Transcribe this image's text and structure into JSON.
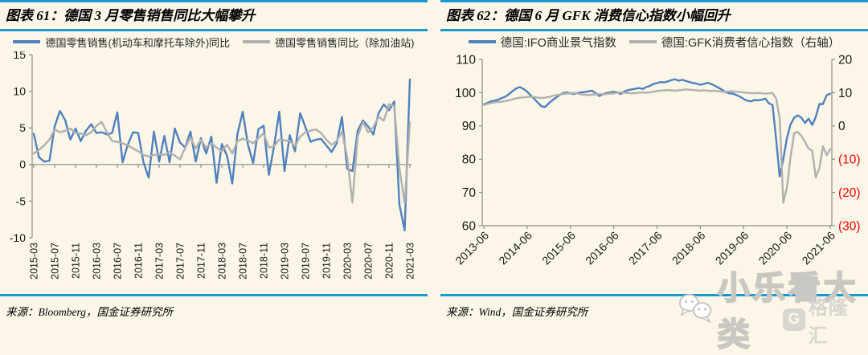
{
  "figures": [
    {
      "title": "图表 61：德国 3 月零售销售同比大幅攀升",
      "legend": [
        {
          "label": "德国零售销售(机动车和摩托车除外)同比",
          "color": "#4f81bd"
        },
        {
          "label": "德国零售销售同比（除加油站)",
          "color": "#b0b0b0"
        }
      ],
      "source": "来源：Bloomberg，国金证券研究所"
    },
    {
      "title": "图表 62：德国 6 月 GFK 消费信心指数小幅回升",
      "legend": [
        {
          "label": "德国:IFO商业景气指数",
          "color": "#4f81bd"
        },
        {
          "label": "德国:GFK消费者信心指数（右轴）",
          "color": "#b0b0b0"
        }
      ],
      "source": "来源：Wind，国金证券研究所"
    }
  ],
  "chart_data": [
    {
      "type": "line",
      "title": "图表 61：德国 3 月零售销售同比大幅攀升",
      "x_monthly_start": "2015-03",
      "x_tick_every": 4,
      "x_tick_labels": [
        "2015-03",
        "2015-07",
        "2015-11",
        "2016-03",
        "2016-07",
        "2016-11",
        "2017-03",
        "2017-07",
        "2017-11",
        "2018-03",
        "2018-07",
        "2018-11",
        "2019-03",
        "2019-07",
        "2019-11",
        "2020-03",
        "2020-07",
        "2020-11",
        "2021-03"
      ],
      "ylim": [
        -10,
        15
      ],
      "y_ticks": [
        15,
        10,
        5,
        0,
        -5,
        -10
      ],
      "x_axis_at": 0,
      "grid": false,
      "legend_position": "top",
      "series": [
        {
          "name": "德国零售销售(机动车和摩托车除外)同比",
          "axis": "left",
          "color": "#4f81bd",
          "values": [
            4.2,
            1.0,
            0.4,
            0.5,
            5.2,
            7.3,
            6.1,
            3.4,
            4.9,
            3.2,
            4.6,
            5.5,
            4.3,
            4.4,
            4.1,
            4.3,
            7.1,
            0.3,
            2.7,
            4.4,
            4.3,
            0.3,
            -1.8,
            4.5,
            0.4,
            3.9,
            0.3,
            4.9,
            3.0,
            2.3,
            4.5,
            0.4,
            3.6,
            1.5,
            3.8,
            -2.5,
            2.8,
            1.2,
            -2.6,
            4.2,
            7.2,
            2.7,
            0.2,
            4.8,
            5.3,
            -1.4,
            2.5,
            7.2,
            -0.9,
            4.0,
            1.8,
            7.0,
            5.1,
            3.1,
            3.4,
            3.5,
            2.6,
            1.7,
            2.9,
            6.5,
            -0.6,
            -0.9,
            4.6,
            6.0,
            5.2,
            4.1,
            7.0,
            8.2,
            7.4,
            8.6,
            -5.5,
            -9.0,
            11.6
          ]
        },
        {
          "name": "德国零售销售同比（除加油站)",
          "axis": "left",
          "color": "#b0b0b0",
          "values": [
            1.5,
            2.0,
            2.6,
            3.4,
            4.8,
            4.4,
            4.6,
            4.9,
            4.3,
            4.2,
            4.0,
            4.4,
            5.3,
            5.8,
            4.4,
            3.2,
            3.1,
            2.9,
            2.6,
            2.2,
            1.8,
            1.3,
            1.1,
            1.3,
            1.4,
            1.3,
            1.7,
            1.2,
            0.7,
            2.3,
            3.7,
            2.2,
            3.4,
            2.3,
            2.9,
            2.3,
            1.8,
            2.7,
            1.5,
            3.2,
            3.5,
            3.3,
            2.9,
            3.6,
            4.3,
            2.3,
            2.5,
            3.4,
            3.3,
            3.2,
            2.5,
            3.8,
            4.4,
            4.6,
            4.8,
            4.3,
            3.4,
            2.7,
            3.2,
            4.5,
            1.0,
            -5.2,
            3.8,
            5.8,
            4.4,
            5.1,
            6.5,
            6.0,
            8.2,
            8.0,
            -0.5,
            -5.3,
            5.8
          ]
        }
      ]
    },
    {
      "type": "line",
      "title": "图表 62：德国 6 月 GFK 消费信心指数小幅回升",
      "x_monthly_start": "2013-06",
      "x_tick_every": 12,
      "x_tick_labels": [
        "2013-06",
        "2014-06",
        "2015-06",
        "2016-06",
        "2017-06",
        "2018-06",
        "2019-06",
        "2020-06",
        "2021-06"
      ],
      "ylim_left": [
        60,
        110
      ],
      "y_ticks_left": [
        110,
        100,
        90,
        80,
        70,
        60
      ],
      "ylim_right": [
        -30,
        20
      ],
      "y_ticks_right": [
        [
          20,
          "20"
        ],
        [
          10,
          "10"
        ],
        [
          0,
          "0"
        ],
        [
          -10,
          "(10)"
        ],
        [
          -20,
          "(20)"
        ],
        [
          -30,
          "(30)"
        ]
      ],
      "x_axis_at": 60,
      "grid": false,
      "legend_position": "top",
      "negative_tick_color": "#ff0000",
      "series": [
        {
          "name": "德国:IFO商业景气指数",
          "axis": "left",
          "color": "#4f81bd",
          "values": [
            96.5,
            96.9,
            97.4,
            97.6,
            97.9,
            98.4,
            98.8,
            99.6,
            100.5,
            101.3,
            101.7,
            101.1,
            100.3,
            99.2,
            98.1,
            97.0,
            95.9,
            95.7,
            96.8,
            97.7,
            98.5,
            99.3,
            99.9,
            100.1,
            99.8,
            99.6,
            99.9,
            100.1,
            100.2,
            100.4,
            100.6,
            99.8,
            99.0,
            99.5,
            99.9,
            100.1,
            100.3,
            100.1,
            99.6,
            100.4,
            100.8,
            101.0,
            101.2,
            101.4,
            101.1,
            101.7,
            102.0,
            102.6,
            102.9,
            103.2,
            103.1,
            103.4,
            103.8,
            104.0,
            103.6,
            103.9,
            103.5,
            103.2,
            102.9,
            102.7,
            102.4,
            102.6,
            103.0,
            102.6,
            102.1,
            101.5,
            100.9,
            100.2,
            99.8,
            99.7,
            99.3,
            98.8,
            98.1,
            97.6,
            97.4,
            97.8,
            97.7,
            97.9,
            98.2,
            96.8,
            96.3,
            86.0,
            74.8,
            80.0,
            86.3,
            90.4,
            92.5,
            93.2,
            92.5,
            90.9,
            92.2,
            90.3,
            92.7,
            96.6,
            96.6,
            99.2,
            99.7
          ]
        },
        {
          "name": "德国:GFK消费者信心指数（右轴）",
          "axis": "right",
          "color": "#b0b0b0",
          "values": [
            6.3,
            6.6,
            6.9,
            7.1,
            7.2,
            7.3,
            7.5,
            7.7,
            8.0,
            8.3,
            8.5,
            8.6,
            8.7,
            8.8,
            8.7,
            8.5,
            8.4,
            8.5,
            8.7,
            9.0,
            9.2,
            9.4,
            9.6,
            9.7,
            9.8,
            9.9,
            9.7,
            9.5,
            9.4,
            9.3,
            9.4,
            9.5,
            9.6,
            9.5,
            9.6,
            9.7,
            9.8,
            10.0,
            10.1,
            10.0,
            9.9,
            9.8,
            9.9,
            10.0,
            10.1,
            10.0,
            10.1,
            10.3,
            10.5,
            10.6,
            10.7,
            10.8,
            10.7,
            10.6,
            10.7,
            10.8,
            11.0,
            10.9,
            10.8,
            10.7,
            10.6,
            10.7,
            10.6,
            10.5,
            10.6,
            10.4,
            10.3,
            10.2,
            10.4,
            10.4,
            10.3,
            10.2,
            10.1,
            10.0,
            9.9,
            9.8,
            9.9,
            9.8,
            9.7,
            9.8,
            9.9,
            8.3,
            2.3,
            -23.1,
            -18.6,
            -9.4,
            -2.2,
            -1.8,
            -3.0,
            -4.8,
            -6.8,
            -7.5,
            -15.5,
            -12.7,
            -6.1,
            -8.8,
            -7.0
          ]
        }
      ]
    }
  ],
  "watermark": {
    "text": "小乐看大类",
    "logo_g": "G",
    "logo_text": "格隆汇"
  },
  "colors": {
    "accent_rule": "#1b9ad2",
    "line_blue": "#4f81bd",
    "line_gray": "#b0b0b0",
    "background": "#fbf6e8",
    "axis": "#8c8c8c",
    "text": "#1a1a1a",
    "negative_red": "#ff0000"
  }
}
